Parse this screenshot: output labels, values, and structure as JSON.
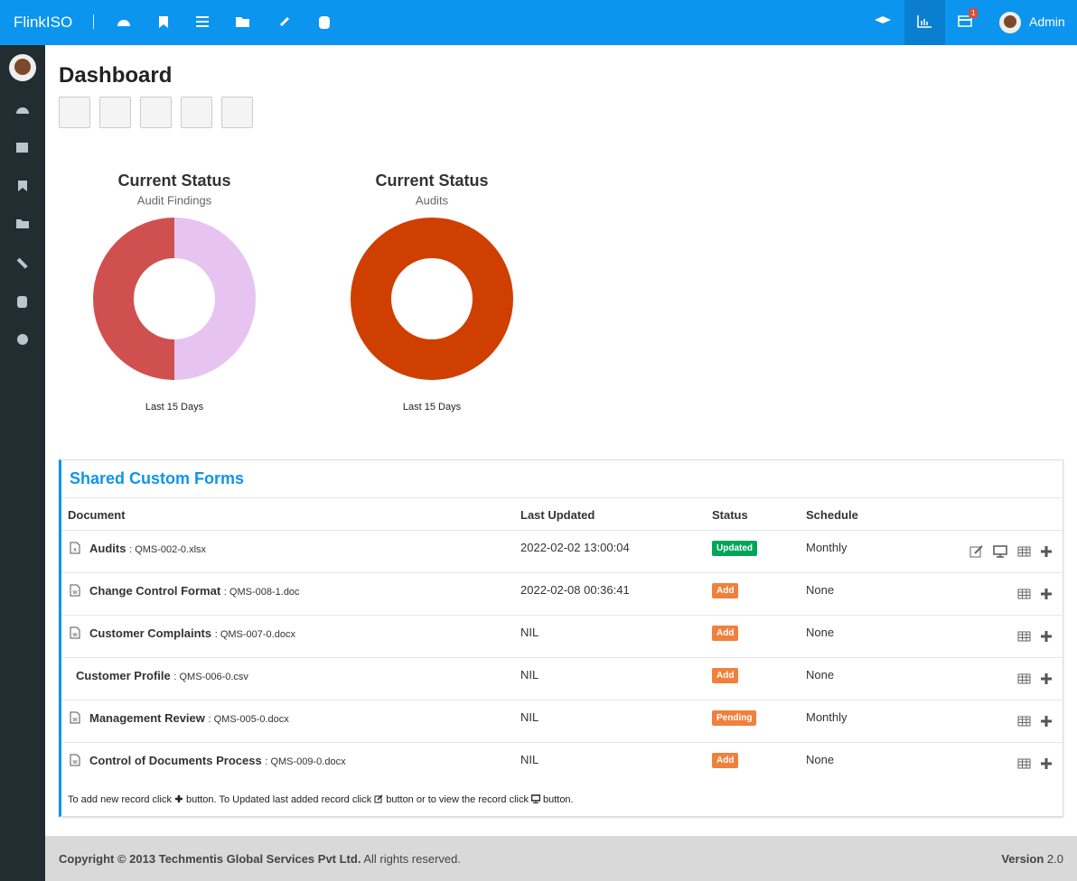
{
  "header": {
    "brand": "FlinkISO",
    "badge": "1",
    "user": "Admin"
  },
  "page": {
    "title": "Dashboard"
  },
  "chart_data": [
    {
      "type": "donut",
      "title": "Current Status",
      "subtitle": "Audit Findings",
      "values": [
        50,
        50
      ],
      "colors": [
        "#d05050",
        "#e6c3f0"
      ],
      "footer": "Last 15 Days"
    },
    {
      "type": "donut",
      "title": "Current Status",
      "subtitle": "Audits",
      "values": [
        100
      ],
      "colors": [
        "#cf3f00"
      ],
      "footer": "Last 15 Days"
    }
  ],
  "forms": {
    "title": "Shared Custom Forms",
    "columns": [
      "Document",
      "Last Updated",
      "Status",
      "Schedule"
    ],
    "rows": [
      {
        "name": "Audits",
        "file": ": QMS-002-0.xlsx",
        "updated": "2022-02-02 13:00:04",
        "status": "Updated",
        "status_color": "#00a65a",
        "schedule": "Monthly"
      },
      {
        "name": "Change Control Format",
        "file": ": QMS-008-1.doc",
        "updated": "2022-02-08 00:36:41",
        "status": "Add",
        "status_color": "#f0803c",
        "schedule": "None"
      },
      {
        "name": "Customer Complaints",
        "file": ": QMS-007-0.docx",
        "updated": "NIL",
        "status": "Add",
        "status_color": "#f0803c",
        "schedule": "None"
      },
      {
        "name": "Customer Profile",
        "file": ": QMS-006-0.csv",
        "updated": "NIL",
        "status": "Add",
        "status_color": "#f0803c",
        "schedule": "None"
      },
      {
        "name": "Management Review",
        "file": ": QMS-005-0.docx",
        "updated": "NIL",
        "status": "Pending",
        "status_color": "#f0803c",
        "schedule": "Monthly"
      },
      {
        "name": "Control of Documents Process",
        "file": ": QMS-009-0.docx",
        "updated": "NIL",
        "status": "Add",
        "status_color": "#f0803c",
        "schedule": "None"
      }
    ],
    "note": [
      "To add new record click",
      "button. To Updated last added record click",
      "button or to view the record click",
      "button."
    ]
  },
  "footer": {
    "copyright": "Copyright © 2013 Techmentis Global Services Pvt Ltd.",
    "rights": "All rights reserved.",
    "version_label": "Version",
    "version": "2.0"
  }
}
